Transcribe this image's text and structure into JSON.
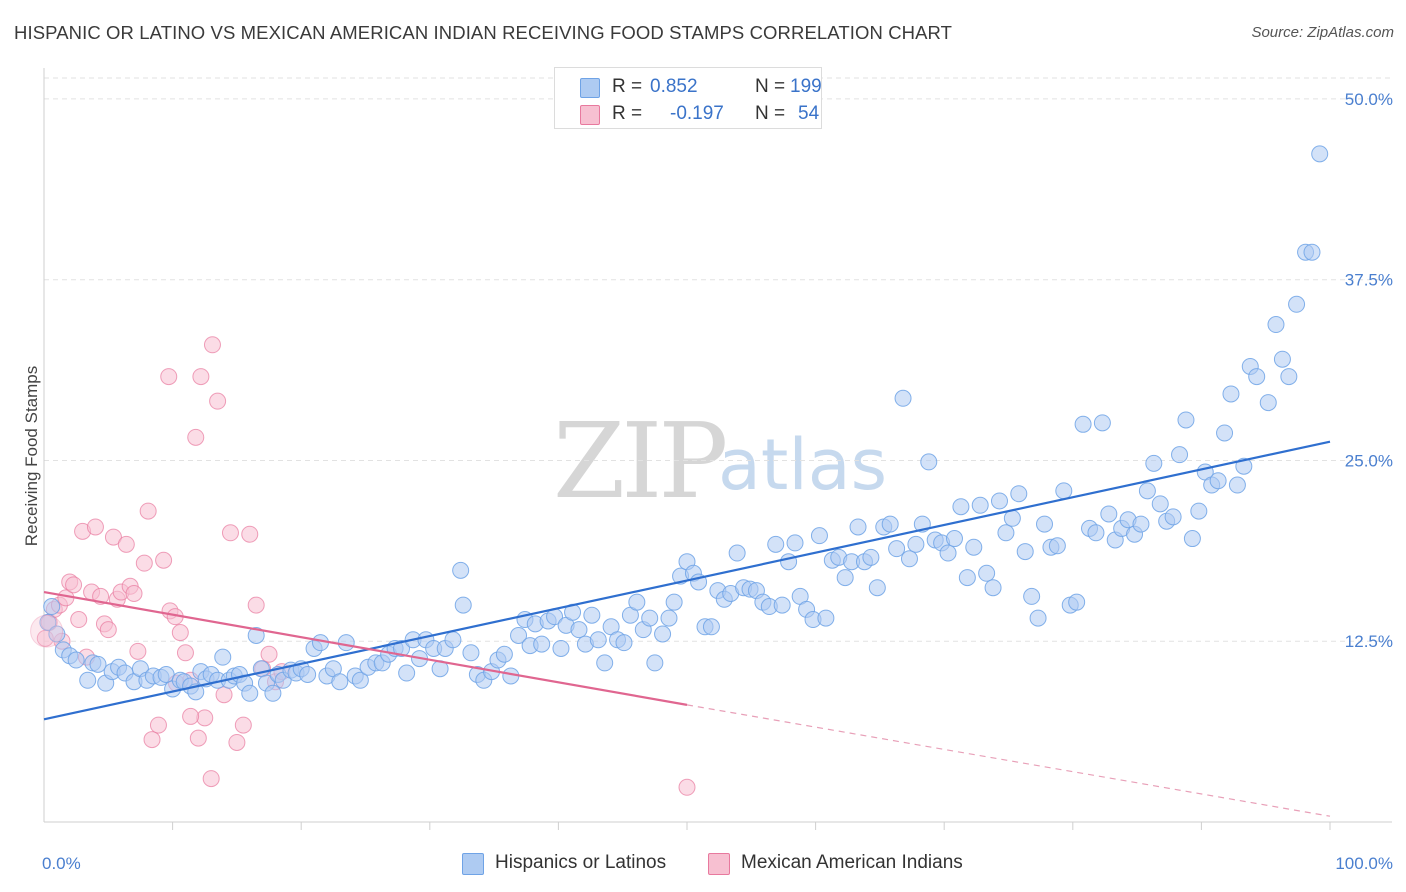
{
  "title": "HISPANIC OR LATINO VS MEXICAN AMERICAN INDIAN RECEIVING FOOD STAMPS CORRELATION CHART",
  "source": "Source: ZipAtlas.com",
  "watermark": {
    "part1": "ZIP",
    "part2": "atlas"
  },
  "legend_stats": [
    {
      "r_label": "R =",
      "r_value": "0.852",
      "n_label": "N =",
      "n_value": "199",
      "color": "#6fa3e6"
    },
    {
      "r_label": "R =",
      "r_value": "-0.197",
      "n_label": "N =",
      "n_value": "54",
      "color": "#f2a0bb"
    }
  ],
  "chart_data": {
    "type": "scatter",
    "title": "HISPANIC OR LATINO VS MEXICAN AMERICAN INDIAN RECEIVING FOOD STAMPS CORRELATION CHART",
    "xlabel": "",
    "ylabel": "Receiving Food Stamps",
    "xlim": [
      0,
      100
    ],
    "ylim": [
      0,
      52
    ],
    "x_tick_labels": [
      "0.0%",
      "100.0%"
    ],
    "y_ticks": [
      12.5,
      25.0,
      37.5,
      50.0
    ],
    "y_tick_labels": [
      "12.5%",
      "25.0%",
      "37.5%",
      "50.0%"
    ],
    "grid": true,
    "legend_position": "bottom",
    "series": [
      {
        "name": "Hispanics or Latinos",
        "color": "#6fa3e6",
        "fill": "#aecbf2",
        "regression": {
          "x": [
            0,
            100
          ],
          "y": [
            7.1,
            26.3
          ]
        },
        "points": [
          [
            0.3,
            13.8
          ],
          [
            0.6,
            14.9
          ],
          [
            1.0,
            13.0
          ],
          [
            1.5,
            11.9
          ],
          [
            2.0,
            11.5
          ],
          [
            2.5,
            11.2
          ],
          [
            3.4,
            9.8
          ],
          [
            3.8,
            11.0
          ],
          [
            4.2,
            10.9
          ],
          [
            4.8,
            9.6
          ],
          [
            5.3,
            10.4
          ],
          [
            5.8,
            10.7
          ],
          [
            6.3,
            10.3
          ],
          [
            7.0,
            9.7
          ],
          [
            7.5,
            10.6
          ],
          [
            8.0,
            9.8
          ],
          [
            8.5,
            10.1
          ],
          [
            9.1,
            10.0
          ],
          [
            9.5,
            10.2
          ],
          [
            10.0,
            9.2
          ],
          [
            10.6,
            9.8
          ],
          [
            10.9,
            9.7
          ],
          [
            11.4,
            9.4
          ],
          [
            11.8,
            9.0
          ],
          [
            12.2,
            10.4
          ],
          [
            12.6,
            9.9
          ],
          [
            13.0,
            10.2
          ],
          [
            13.5,
            9.8
          ],
          [
            13.9,
            11.4
          ],
          [
            14.4,
            9.8
          ],
          [
            14.8,
            10.1
          ],
          [
            15.2,
            10.2
          ],
          [
            15.6,
            9.6
          ],
          [
            16.0,
            8.9
          ],
          [
            16.5,
            12.9
          ],
          [
            16.9,
            10.6
          ],
          [
            17.3,
            9.6
          ],
          [
            17.8,
            8.9
          ],
          [
            18.2,
            10.2
          ],
          [
            18.6,
            9.8
          ],
          [
            19.2,
            10.5
          ],
          [
            19.6,
            10.3
          ],
          [
            20.0,
            10.6
          ],
          [
            20.5,
            10.2
          ],
          [
            21.0,
            12.0
          ],
          [
            21.5,
            12.4
          ],
          [
            22.0,
            10.1
          ],
          [
            22.5,
            10.6
          ],
          [
            23.0,
            9.7
          ],
          [
            23.5,
            12.4
          ],
          [
            24.2,
            10.1
          ],
          [
            24.6,
            9.8
          ],
          [
            25.2,
            10.7
          ],
          [
            25.8,
            11.0
          ],
          [
            26.3,
            11.0
          ],
          [
            26.8,
            11.6
          ],
          [
            27.3,
            12.0
          ],
          [
            27.8,
            12.0
          ],
          [
            28.2,
            10.3
          ],
          [
            28.7,
            12.6
          ],
          [
            29.2,
            11.3
          ],
          [
            29.7,
            12.6
          ],
          [
            30.3,
            12.0
          ],
          [
            30.8,
            10.6
          ],
          [
            31.2,
            12.0
          ],
          [
            31.8,
            12.6
          ],
          [
            32.4,
            17.4
          ],
          [
            32.6,
            15.0
          ],
          [
            33.2,
            11.7
          ],
          [
            33.7,
            10.2
          ],
          [
            34.2,
            9.8
          ],
          [
            34.8,
            10.4
          ],
          [
            35.3,
            11.2
          ],
          [
            35.8,
            11.6
          ],
          [
            36.3,
            10.1
          ],
          [
            36.9,
            12.9
          ],
          [
            37.4,
            14.0
          ],
          [
            37.8,
            12.2
          ],
          [
            38.2,
            13.7
          ],
          [
            38.7,
            12.3
          ],
          [
            39.2,
            13.9
          ],
          [
            39.7,
            14.2
          ],
          [
            40.2,
            12.0
          ],
          [
            40.6,
            13.6
          ],
          [
            41.1,
            14.5
          ],
          [
            41.6,
            13.3
          ],
          [
            42.1,
            12.3
          ],
          [
            42.6,
            14.3
          ],
          [
            43.1,
            12.6
          ],
          [
            43.6,
            11.0
          ],
          [
            44.1,
            13.5
          ],
          [
            44.6,
            12.6
          ],
          [
            45.1,
            12.4
          ],
          [
            45.6,
            14.3
          ],
          [
            46.1,
            15.2
          ],
          [
            46.6,
            13.3
          ],
          [
            47.1,
            14.1
          ],
          [
            47.5,
            11.0
          ],
          [
            48.1,
            13.0
          ],
          [
            48.6,
            14.1
          ],
          [
            49.0,
            15.2
          ],
          [
            49.5,
            17.0
          ],
          [
            50.0,
            18.0
          ],
          [
            50.5,
            17.2
          ],
          [
            50.9,
            16.6
          ],
          [
            51.4,
            13.5
          ],
          [
            51.9,
            13.5
          ],
          [
            52.4,
            16.0
          ],
          [
            52.9,
            15.4
          ],
          [
            53.4,
            15.8
          ],
          [
            53.9,
            18.6
          ],
          [
            54.4,
            16.2
          ],
          [
            54.9,
            16.1
          ],
          [
            55.4,
            16.0
          ],
          [
            55.9,
            15.2
          ],
          [
            56.4,
            14.9
          ],
          [
            56.9,
            19.2
          ],
          [
            57.4,
            15.0
          ],
          [
            57.9,
            18.0
          ],
          [
            58.4,
            19.3
          ],
          [
            58.8,
            15.6
          ],
          [
            59.3,
            14.7
          ],
          [
            59.8,
            14.0
          ],
          [
            60.3,
            19.8
          ],
          [
            60.8,
            14.1
          ],
          [
            61.3,
            18.1
          ],
          [
            61.8,
            18.3
          ],
          [
            62.3,
            16.9
          ],
          [
            62.8,
            18.0
          ],
          [
            63.3,
            20.4
          ],
          [
            63.8,
            18.0
          ],
          [
            64.3,
            18.3
          ],
          [
            64.8,
            16.2
          ],
          [
            65.3,
            20.4
          ],
          [
            65.8,
            20.6
          ],
          [
            66.3,
            18.9
          ],
          [
            66.8,
            29.3
          ],
          [
            67.3,
            18.2
          ],
          [
            67.8,
            19.2
          ],
          [
            68.3,
            20.6
          ],
          [
            68.8,
            24.9
          ],
          [
            69.3,
            19.5
          ],
          [
            69.8,
            19.3
          ],
          [
            70.3,
            18.6
          ],
          [
            70.8,
            19.6
          ],
          [
            71.3,
            21.8
          ],
          [
            71.8,
            16.9
          ],
          [
            72.3,
            19.0
          ],
          [
            72.8,
            21.9
          ],
          [
            73.3,
            17.2
          ],
          [
            73.8,
            16.2
          ],
          [
            74.3,
            22.2
          ],
          [
            74.8,
            20.0
          ],
          [
            75.3,
            21.0
          ],
          [
            75.8,
            22.7
          ],
          [
            76.3,
            18.7
          ],
          [
            76.8,
            15.6
          ],
          [
            77.3,
            14.1
          ],
          [
            77.8,
            20.6
          ],
          [
            78.3,
            19.0
          ],
          [
            78.8,
            19.1
          ],
          [
            79.3,
            22.9
          ],
          [
            79.8,
            15.0
          ],
          [
            80.3,
            15.2
          ],
          [
            80.8,
            27.5
          ],
          [
            81.3,
            20.3
          ],
          [
            81.8,
            20.0
          ],
          [
            82.3,
            27.6
          ],
          [
            82.8,
            21.3
          ],
          [
            83.3,
            19.5
          ],
          [
            83.8,
            20.3
          ],
          [
            84.3,
            20.9
          ],
          [
            84.8,
            19.9
          ],
          [
            85.3,
            20.6
          ],
          [
            85.8,
            22.9
          ],
          [
            86.3,
            24.8
          ],
          [
            86.8,
            22.0
          ],
          [
            87.3,
            20.8
          ],
          [
            87.8,
            21.1
          ],
          [
            88.3,
            25.4
          ],
          [
            88.8,
            27.8
          ],
          [
            89.3,
            19.6
          ],
          [
            89.8,
            21.5
          ],
          [
            90.3,
            24.2
          ],
          [
            90.8,
            23.3
          ],
          [
            91.3,
            23.6
          ],
          [
            91.8,
            26.9
          ],
          [
            92.3,
            29.6
          ],
          [
            92.8,
            23.3
          ],
          [
            93.3,
            24.6
          ],
          [
            93.8,
            31.5
          ],
          [
            94.3,
            30.8
          ],
          [
            95.2,
            29.0
          ],
          [
            95.8,
            34.4
          ],
          [
            96.3,
            32.0
          ],
          [
            96.8,
            30.8
          ],
          [
            97.4,
            35.8
          ],
          [
            98.1,
            39.4
          ],
          [
            98.6,
            39.4
          ],
          [
            99.2,
            46.2
          ]
        ]
      },
      {
        "name": "Mexican American Indians",
        "color": "#e8799e",
        "fill": "#f7c0d1",
        "regression": {
          "x": [
            0,
            50
          ],
          "y": [
            15.9,
            8.1
          ]
        },
        "regression_extension": {
          "x": [
            50,
            100
          ],
          "y": [
            8.1,
            0.4
          ]
        },
        "points": [
          [
            0.1,
            12.7
          ],
          [
            0.4,
            13.8
          ],
          [
            0.8,
            14.7
          ],
          [
            1.2,
            15.0
          ],
          [
            1.4,
            12.5
          ],
          [
            1.7,
            15.5
          ],
          [
            2.0,
            16.6
          ],
          [
            2.3,
            16.4
          ],
          [
            2.7,
            14.0
          ],
          [
            3.0,
            20.1
          ],
          [
            3.3,
            11.4
          ],
          [
            3.7,
            15.9
          ],
          [
            4.0,
            20.4
          ],
          [
            4.4,
            15.6
          ],
          [
            4.7,
            13.7
          ],
          [
            5.0,
            13.3
          ],
          [
            5.4,
            19.7
          ],
          [
            5.7,
            15.4
          ],
          [
            6.0,
            15.9
          ],
          [
            6.4,
            19.2
          ],
          [
            6.7,
            16.3
          ],
          [
            7.0,
            15.8
          ],
          [
            7.3,
            11.8
          ],
          [
            7.8,
            17.9
          ],
          [
            8.1,
            21.5
          ],
          [
            8.4,
            5.7
          ],
          [
            8.9,
            6.7
          ],
          [
            9.3,
            18.1
          ],
          [
            9.8,
            14.6
          ],
          [
            10.2,
            14.2
          ],
          [
            10.6,
            13.1
          ],
          [
            11.0,
            11.7
          ],
          [
            11.4,
            9.8
          ],
          [
            11.8,
            26.6
          ],
          [
            12.0,
            5.8
          ],
          [
            12.5,
            7.2
          ],
          [
            13.0,
            3.0
          ],
          [
            13.5,
            29.1
          ],
          [
            14.0,
            8.8
          ],
          [
            14.5,
            20.0
          ],
          [
            15.0,
            5.5
          ],
          [
            15.5,
            6.7
          ],
          [
            16.0,
            19.9
          ],
          [
            16.5,
            15.0
          ],
          [
            17.0,
            10.6
          ],
          [
            17.5,
            11.6
          ],
          [
            18.0,
            9.7
          ],
          [
            18.5,
            10.4
          ],
          [
            9.7,
            30.8
          ],
          [
            10.3,
            9.6
          ],
          [
            11.4,
            7.3
          ],
          [
            12.2,
            30.8
          ],
          [
            13.1,
            33.0
          ],
          [
            50.0,
            2.4
          ]
        ]
      }
    ]
  },
  "bottom_legend": [
    {
      "label": "Hispanics or Latinos",
      "color": "#aecbf2",
      "border": "#6fa3e6"
    },
    {
      "label": "Mexican American Indians",
      "color": "#f7c0d1",
      "border": "#e8799e"
    }
  ]
}
